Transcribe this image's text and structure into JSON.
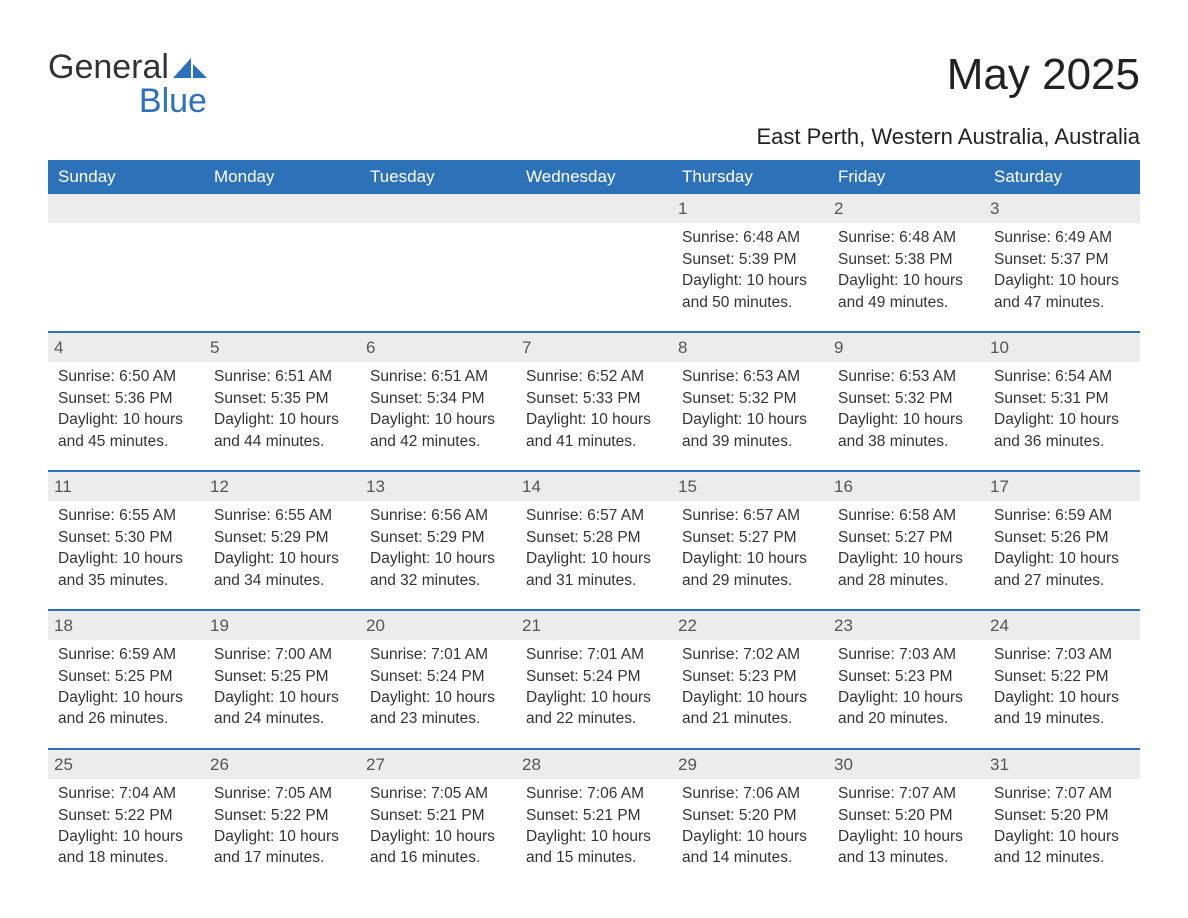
{
  "brand": {
    "word1": "General",
    "word2": "Blue",
    "text_color": "#333333",
    "accent_color": "#2d72b8"
  },
  "title": "May 2025",
  "subtitle": "East Perth, Western Australia, Australia",
  "colors": {
    "header_bg": "#2d72b8",
    "header_text": "#ffffff",
    "daynum_bg": "#ececec",
    "daynum_text": "#555555",
    "body_text": "#333333",
    "rule": "#2d72b8",
    "page_bg": "#ffffff"
  },
  "fonts": {
    "title_size_pt": 33,
    "subtitle_size_pt": 17,
    "header_size_pt": 13,
    "body_size_pt": 12
  },
  "day_headers": [
    "Sunday",
    "Monday",
    "Tuesday",
    "Wednesday",
    "Thursday",
    "Friday",
    "Saturday"
  ],
  "weeks": [
    [
      {
        "n": "",
        "sunrise": "",
        "sunset": "",
        "daylight": ""
      },
      {
        "n": "",
        "sunrise": "",
        "sunset": "",
        "daylight": ""
      },
      {
        "n": "",
        "sunrise": "",
        "sunset": "",
        "daylight": ""
      },
      {
        "n": "",
        "sunrise": "",
        "sunset": "",
        "daylight": ""
      },
      {
        "n": "1",
        "sunrise": "Sunrise: 6:48 AM",
        "sunset": "Sunset: 5:39 PM",
        "daylight": "Daylight: 10 hours and 50 minutes."
      },
      {
        "n": "2",
        "sunrise": "Sunrise: 6:48 AM",
        "sunset": "Sunset: 5:38 PM",
        "daylight": "Daylight: 10 hours and 49 minutes."
      },
      {
        "n": "3",
        "sunrise": "Sunrise: 6:49 AM",
        "sunset": "Sunset: 5:37 PM",
        "daylight": "Daylight: 10 hours and 47 minutes."
      }
    ],
    [
      {
        "n": "4",
        "sunrise": "Sunrise: 6:50 AM",
        "sunset": "Sunset: 5:36 PM",
        "daylight": "Daylight: 10 hours and 45 minutes."
      },
      {
        "n": "5",
        "sunrise": "Sunrise: 6:51 AM",
        "sunset": "Sunset: 5:35 PM",
        "daylight": "Daylight: 10 hours and 44 minutes."
      },
      {
        "n": "6",
        "sunrise": "Sunrise: 6:51 AM",
        "sunset": "Sunset: 5:34 PM",
        "daylight": "Daylight: 10 hours and 42 minutes."
      },
      {
        "n": "7",
        "sunrise": "Sunrise: 6:52 AM",
        "sunset": "Sunset: 5:33 PM",
        "daylight": "Daylight: 10 hours and 41 minutes."
      },
      {
        "n": "8",
        "sunrise": "Sunrise: 6:53 AM",
        "sunset": "Sunset: 5:32 PM",
        "daylight": "Daylight: 10 hours and 39 minutes."
      },
      {
        "n": "9",
        "sunrise": "Sunrise: 6:53 AM",
        "sunset": "Sunset: 5:32 PM",
        "daylight": "Daylight: 10 hours and 38 minutes."
      },
      {
        "n": "10",
        "sunrise": "Sunrise: 6:54 AM",
        "sunset": "Sunset: 5:31 PM",
        "daylight": "Daylight: 10 hours and 36 minutes."
      }
    ],
    [
      {
        "n": "11",
        "sunrise": "Sunrise: 6:55 AM",
        "sunset": "Sunset: 5:30 PM",
        "daylight": "Daylight: 10 hours and 35 minutes."
      },
      {
        "n": "12",
        "sunrise": "Sunrise: 6:55 AM",
        "sunset": "Sunset: 5:29 PM",
        "daylight": "Daylight: 10 hours and 34 minutes."
      },
      {
        "n": "13",
        "sunrise": "Sunrise: 6:56 AM",
        "sunset": "Sunset: 5:29 PM",
        "daylight": "Daylight: 10 hours and 32 minutes."
      },
      {
        "n": "14",
        "sunrise": "Sunrise: 6:57 AM",
        "sunset": "Sunset: 5:28 PM",
        "daylight": "Daylight: 10 hours and 31 minutes."
      },
      {
        "n": "15",
        "sunrise": "Sunrise: 6:57 AM",
        "sunset": "Sunset: 5:27 PM",
        "daylight": "Daylight: 10 hours and 29 minutes."
      },
      {
        "n": "16",
        "sunrise": "Sunrise: 6:58 AM",
        "sunset": "Sunset: 5:27 PM",
        "daylight": "Daylight: 10 hours and 28 minutes."
      },
      {
        "n": "17",
        "sunrise": "Sunrise: 6:59 AM",
        "sunset": "Sunset: 5:26 PM",
        "daylight": "Daylight: 10 hours and 27 minutes."
      }
    ],
    [
      {
        "n": "18",
        "sunrise": "Sunrise: 6:59 AM",
        "sunset": "Sunset: 5:25 PM",
        "daylight": "Daylight: 10 hours and 26 minutes."
      },
      {
        "n": "19",
        "sunrise": "Sunrise: 7:00 AM",
        "sunset": "Sunset: 5:25 PM",
        "daylight": "Daylight: 10 hours and 24 minutes."
      },
      {
        "n": "20",
        "sunrise": "Sunrise: 7:01 AM",
        "sunset": "Sunset: 5:24 PM",
        "daylight": "Daylight: 10 hours and 23 minutes."
      },
      {
        "n": "21",
        "sunrise": "Sunrise: 7:01 AM",
        "sunset": "Sunset: 5:24 PM",
        "daylight": "Daylight: 10 hours and 22 minutes."
      },
      {
        "n": "22",
        "sunrise": "Sunrise: 7:02 AM",
        "sunset": "Sunset: 5:23 PM",
        "daylight": "Daylight: 10 hours and 21 minutes."
      },
      {
        "n": "23",
        "sunrise": "Sunrise: 7:03 AM",
        "sunset": "Sunset: 5:23 PM",
        "daylight": "Daylight: 10 hours and 20 minutes."
      },
      {
        "n": "24",
        "sunrise": "Sunrise: 7:03 AM",
        "sunset": "Sunset: 5:22 PM",
        "daylight": "Daylight: 10 hours and 19 minutes."
      }
    ],
    [
      {
        "n": "25",
        "sunrise": "Sunrise: 7:04 AM",
        "sunset": "Sunset: 5:22 PM",
        "daylight": "Daylight: 10 hours and 18 minutes."
      },
      {
        "n": "26",
        "sunrise": "Sunrise: 7:05 AM",
        "sunset": "Sunset: 5:22 PM",
        "daylight": "Daylight: 10 hours and 17 minutes."
      },
      {
        "n": "27",
        "sunrise": "Sunrise: 7:05 AM",
        "sunset": "Sunset: 5:21 PM",
        "daylight": "Daylight: 10 hours and 16 minutes."
      },
      {
        "n": "28",
        "sunrise": "Sunrise: 7:06 AM",
        "sunset": "Sunset: 5:21 PM",
        "daylight": "Daylight: 10 hours and 15 minutes."
      },
      {
        "n": "29",
        "sunrise": "Sunrise: 7:06 AM",
        "sunset": "Sunset: 5:20 PM",
        "daylight": "Daylight: 10 hours and 14 minutes."
      },
      {
        "n": "30",
        "sunrise": "Sunrise: 7:07 AM",
        "sunset": "Sunset: 5:20 PM",
        "daylight": "Daylight: 10 hours and 13 minutes."
      },
      {
        "n": "31",
        "sunrise": "Sunrise: 7:07 AM",
        "sunset": "Sunset: 5:20 PM",
        "daylight": "Daylight: 10 hours and 12 minutes."
      }
    ]
  ]
}
